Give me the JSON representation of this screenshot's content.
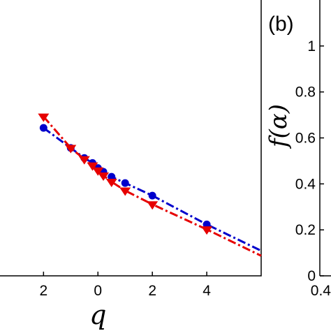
{
  "chart_data": [
    {
      "type": "line",
      "panel": "a",
      "xlabel": "q",
      "ylabel": "",
      "xlim": [
        -3.6,
        6
      ],
      "ylim": [
        0.05,
        1.15
      ],
      "x_tick_values": [
        -2,
        0,
        2,
        4
      ],
      "x_tick_labels": [
        "2",
        "0",
        "2",
        "4"
      ],
      "series": [
        {
          "color": "#0000cc",
          "line_style": "dash-dot",
          "marker": "circle",
          "x": [
            -2,
            -1,
            -0.5,
            -0.2,
            0,
            0.2,
            0.5,
            1,
            2,
            4,
            6
          ],
          "y": [
            0.64,
            0.56,
            0.52,
            0.5,
            0.48,
            0.465,
            0.445,
            0.42,
            0.37,
            0.255,
            0.15
          ]
        },
        {
          "color": "#e60000",
          "line_style": "dash-dot",
          "marker": "triangle-down",
          "x": [
            -2,
            -1,
            -0.5,
            -0.2,
            0,
            0.2,
            0.5,
            1,
            2,
            4,
            6
          ],
          "y": [
            0.685,
            0.56,
            0.515,
            0.49,
            0.47,
            0.45,
            0.425,
            0.39,
            0.335,
            0.235,
            0.13
          ]
        }
      ]
    },
    {
      "type": "line",
      "panel_label": "(b)",
      "ylabel": "f(α)",
      "ylim": [
        0,
        1.2
      ],
      "y_ticks": [
        "0",
        "0.2",
        "0.4",
        "0.6",
        "0.8",
        "1"
      ],
      "x_tick_labels": [
        "0.4"
      ],
      "series": []
    }
  ]
}
